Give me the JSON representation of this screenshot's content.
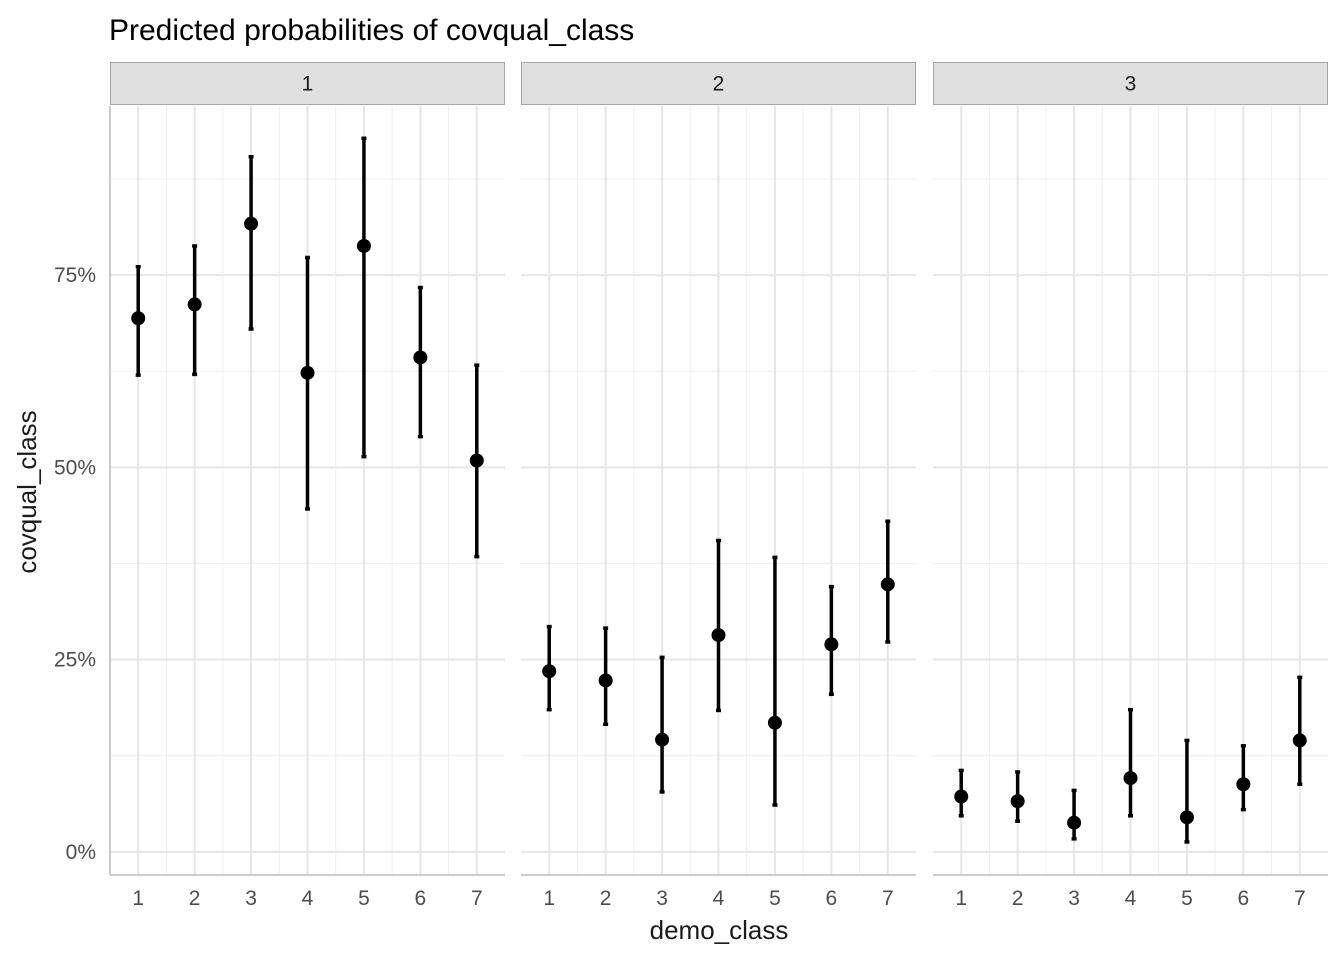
{
  "chart_data": {
    "type": "scatter",
    "title": "Predicted probabilities of covqual_class",
    "xlabel": "demo_class",
    "ylabel": "covqual_class",
    "x_categories": [
      "1",
      "2",
      "3",
      "4",
      "5",
      "6",
      "7"
    ],
    "y_ticks": [
      0,
      0.25,
      0.5,
      0.75
    ],
    "y_tick_labels": [
      "0%",
      "25%",
      "50%",
      "75%"
    ],
    "ylim": [
      -0.03,
      0.97
    ],
    "grid": true,
    "legend": "none",
    "colors": {
      "point": "#000000",
      "strip_fill": "#e0e0e0",
      "strip_border": "#a6a6a6",
      "grid_major": "#e6e6e6",
      "grid_minor": "#f0f0f0",
      "axis_line": "#cccccc"
    },
    "facets": [
      {
        "label": "1",
        "points": [
          {
            "x": "1",
            "estimate": 0.694,
            "lower": 0.62,
            "upper": 0.761
          },
          {
            "x": "2",
            "estimate": 0.712,
            "lower": 0.621,
            "upper": 0.788
          },
          {
            "x": "3",
            "estimate": 0.817,
            "lower": 0.68,
            "upper": 0.904
          },
          {
            "x": "4",
            "estimate": 0.623,
            "lower": 0.446,
            "upper": 0.773
          },
          {
            "x": "5",
            "estimate": 0.788,
            "lower": 0.514,
            "upper": 0.928
          },
          {
            "x": "6",
            "estimate": 0.643,
            "lower": 0.54,
            "upper": 0.734
          },
          {
            "x": "7",
            "estimate": 0.509,
            "lower": 0.384,
            "upper": 0.633
          }
        ]
      },
      {
        "label": "2",
        "points": [
          {
            "x": "1",
            "estimate": 0.235,
            "lower": 0.185,
            "upper": 0.293
          },
          {
            "x": "2",
            "estimate": 0.223,
            "lower": 0.166,
            "upper": 0.291
          },
          {
            "x": "3",
            "estimate": 0.146,
            "lower": 0.078,
            "upper": 0.253
          },
          {
            "x": "4",
            "estimate": 0.282,
            "lower": 0.184,
            "upper": 0.405
          },
          {
            "x": "5",
            "estimate": 0.168,
            "lower": 0.061,
            "upper": 0.383
          },
          {
            "x": "6",
            "estimate": 0.27,
            "lower": 0.205,
            "upper": 0.345
          },
          {
            "x": "7",
            "estimate": 0.348,
            "lower": 0.273,
            "upper": 0.43
          }
        ]
      },
      {
        "label": "3",
        "points": [
          {
            "x": "1",
            "estimate": 0.072,
            "lower": 0.047,
            "upper": 0.106
          },
          {
            "x": "2",
            "estimate": 0.066,
            "lower": 0.04,
            "upper": 0.104
          },
          {
            "x": "3",
            "estimate": 0.038,
            "lower": 0.017,
            "upper": 0.08
          },
          {
            "x": "4",
            "estimate": 0.096,
            "lower": 0.047,
            "upper": 0.185
          },
          {
            "x": "5",
            "estimate": 0.045,
            "lower": 0.013,
            "upper": 0.145
          },
          {
            "x": "6",
            "estimate": 0.088,
            "lower": 0.055,
            "upper": 0.138
          },
          {
            "x": "7",
            "estimate": 0.145,
            "lower": 0.088,
            "upper": 0.227
          }
        ]
      }
    ]
  }
}
